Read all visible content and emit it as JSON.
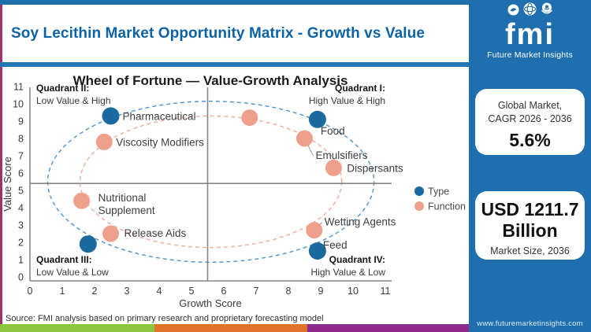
{
  "header": {
    "title": "Soy Lecithin Market Opportunity Matrix - Growth vs Value"
  },
  "logo": {
    "brand": "fmi",
    "tagline": "Future Market Insights"
  },
  "sidebar": {
    "card1": {
      "line1": "Global Market,",
      "line2": "CAGR 2026 - 2036",
      "value": "5.6%"
    },
    "card2": {
      "value_line1": "USD 1211.7",
      "value_line2": "Billion",
      "label": "Market Size, 2036"
    },
    "url": "www.futuremarketinsights.com"
  },
  "footer": {
    "source": "Source: FMI analysis based on primary research and proprietary forecasting model"
  },
  "colors": {
    "accent_blue": "#1f6fae",
    "title_blue": "#0b63a5",
    "type_color": "#1a699f",
    "function_color": "#efa08c",
    "ellipse_blue": "#4a94cc",
    "ellipse_salmon": "#f2ab97",
    "stripe_green": "#8cc63e",
    "stripe_orange": "#e0722a",
    "stripe_purple": "#8f2a8c",
    "left_border_magenta": "#a03168",
    "axis_gray": "#858585"
  },
  "chart_data": {
    "type": "scatter",
    "title": "Wheel of Fortune — Value-Growth Analysis",
    "xlabel": "Growth Score",
    "ylabel": "Value Score",
    "xlim": [
      0,
      11
    ],
    "ylim": [
      0,
      11
    ],
    "x_ticks": [
      0,
      1,
      2,
      3,
      4,
      5,
      6,
      7,
      8,
      9,
      10,
      11
    ],
    "y_ticks": [
      0,
      1,
      2,
      3,
      4,
      5,
      6,
      7,
      8,
      9,
      10,
      11
    ],
    "grid": false,
    "legend_position": "right",
    "crosshair": {
      "x": 5.5,
      "y": 5.4
    },
    "legend": [
      {
        "name": "Type",
        "color": "#1a699f"
      },
      {
        "name": "Function",
        "color": "#efa08c"
      }
    ],
    "series": [
      {
        "name": "Type",
        "color": "#1a699f",
        "points": [
          {
            "label": "Pharmaceutical",
            "x": 2.5,
            "y": 9.3,
            "dx": 15,
            "dy": 5
          },
          {
            "label": "Food",
            "x": 8.9,
            "y": 9.1,
            "dx": 4,
            "dy": 19
          },
          {
            "label": "",
            "x": 1.8,
            "y": 1.9
          },
          {
            "label": "Feed",
            "x": 8.9,
            "y": 1.5,
            "dx": 7,
            "dy": -3
          }
        ]
      },
      {
        "name": "Function",
        "color": "#efa08c",
        "points": [
          {
            "label": "Viscosity Modifiers",
            "x": 2.3,
            "y": 7.8,
            "dx": 15,
            "dy": 5
          },
          {
            "label": "",
            "x": 6.8,
            "y": 9.2
          },
          {
            "label": "Emulsifiers",
            "x": 8.5,
            "y": 8.0,
            "dx": 14,
            "dy": 26,
            "connector": true
          },
          {
            "label": "Dispersants",
            "x": 9.4,
            "y": 6.3,
            "dx": 17,
            "dy": 5
          },
          {
            "label": "Nutritional\nSupplement",
            "x": 1.6,
            "y": 4.4,
            "dx": 21,
            "dy": 1
          },
          {
            "label": "Release Aids",
            "x": 2.5,
            "y": 2.5,
            "dx": 17,
            "dy": 4
          },
          {
            "label": "Wetting Agents",
            "x": 8.8,
            "y": 2.7,
            "dx": 13,
            "dy": -6,
            "connector": true
          }
        ]
      }
    ],
    "ellipses": [
      {
        "cx": 5.6,
        "cy": 5.5,
        "rx": 5.05,
        "ry": 4.65,
        "color": "#4a94cc"
      },
      {
        "cx": 5.6,
        "cy": 5.5,
        "rx": 4.05,
        "ry": 3.8,
        "color": "#f2ab97"
      }
    ],
    "quadrants": [
      {
        "line1": "Quadrant II:",
        "line2": "Low Value & High",
        "pos": "top-left"
      },
      {
        "line1": "Quadrant I:",
        "line2": "High Value & High",
        "pos": "top-right"
      },
      {
        "line1": "Quadrant III:",
        "line2": "Low Value & Low",
        "pos": "bottom-left"
      },
      {
        "line1": "Quadrant IV:",
        "line2": "High Value & Low",
        "pos": "bottom-right"
      }
    ]
  }
}
